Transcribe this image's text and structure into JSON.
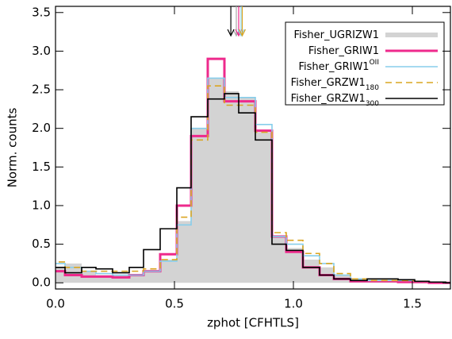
{
  "chart_data": {
    "type": "histogram",
    "xlabel": "zphot [CFHTLS]",
    "ylabel": "Norm. counts",
    "xlim": [
      0,
      1.66
    ],
    "ylim": [
      -0.08,
      3.58
    ],
    "xticks": [
      {
        "value": 0,
        "label": "0.0"
      },
      0.5,
      {
        "value": 1,
        "label": "1.0"
      },
      1.5
    ],
    "yticks": [
      {
        "value": 0,
        "label": "0.0"
      },
      0.5,
      {
        "value": 1,
        "label": "1.0"
      },
      1.5,
      {
        "value": 2,
        "label": "2.0"
      },
      2.5,
      {
        "value": 3,
        "label": "3.0"
      },
      3.5
    ],
    "bins": [
      -0.03,
      0.04,
      0.11,
      0.17,
      0.24,
      0.31,
      0.37,
      0.44,
      0.51,
      0.57,
      0.64,
      0.71,
      0.77,
      0.84,
      0.91,
      0.97,
      1.04,
      1.11,
      1.17,
      1.24,
      1.31,
      1.37,
      1.44,
      1.51,
      1.57,
      1.64,
      1.71
    ],
    "series": [
      {
        "name": "Fisher_UGRIZW1",
        "color": "#d3d3d3",
        "style": "filled",
        "median": 0.76,
        "values": [
          0.2,
          0.25,
          0.15,
          0.1,
          0.1,
          0.1,
          0.15,
          0.3,
          0.8,
          2.0,
          2.65,
          2.48,
          2.4,
          1.95,
          0.6,
          0.45,
          0.3,
          0.2,
          0.1,
          0.05,
          0.03,
          0.03,
          0.02,
          0.02,
          0.01,
          0.0
        ]
      },
      {
        "name": "Fisher_GRIW1",
        "color": "#ee2a8c",
        "style": "thick",
        "median": 0.77,
        "values": [
          0.15,
          0.1,
          0.08,
          0.08,
          0.07,
          0.1,
          0.15,
          0.37,
          1.0,
          1.9,
          2.9,
          2.35,
          2.35,
          1.97,
          0.6,
          0.4,
          0.2,
          0.1,
          0.05,
          0.02,
          0.02,
          0.02,
          0.01,
          0.01,
          0.0,
          0.0
        ]
      },
      {
        "name": "Fisher_GRIW1",
        "superscript": "OII",
        "color": "#87ceeb",
        "style": "solid",
        "median": 0.78,
        "values": [
          0.25,
          0.2,
          0.15,
          0.12,
          0.1,
          0.1,
          0.15,
          0.28,
          0.75,
          2.0,
          2.65,
          2.4,
          2.4,
          2.05,
          0.6,
          0.5,
          0.35,
          0.25,
          0.1,
          0.05,
          0.03,
          0.03,
          0.03,
          0.02,
          0.01,
          0.0
        ]
      },
      {
        "name": "Fisher_GRZW1",
        "subscript": "180",
        "color": "#daa520",
        "style": "dashed",
        "median": 0.785,
        "values": [
          0.27,
          0.2,
          0.15,
          0.15,
          0.15,
          0.15,
          0.18,
          0.3,
          0.85,
          1.85,
          2.55,
          2.3,
          2.3,
          1.95,
          0.65,
          0.55,
          0.38,
          0.25,
          0.12,
          0.05,
          0.03,
          0.03,
          0.03,
          0.02,
          0.01,
          0.0
        ]
      },
      {
        "name": "Fisher_GRZW1",
        "subscript": "300",
        "color": "#000000",
        "style": "solid",
        "median": 0.737,
        "values": [
          0.2,
          0.13,
          0.2,
          0.18,
          0.13,
          0.2,
          0.43,
          0.7,
          1.23,
          2.15,
          2.38,
          2.45,
          2.2,
          1.85,
          0.5,
          0.42,
          0.2,
          0.1,
          0.05,
          0.03,
          0.05,
          0.05,
          0.04,
          0.02,
          0.01,
          0.0
        ]
      }
    ]
  }
}
